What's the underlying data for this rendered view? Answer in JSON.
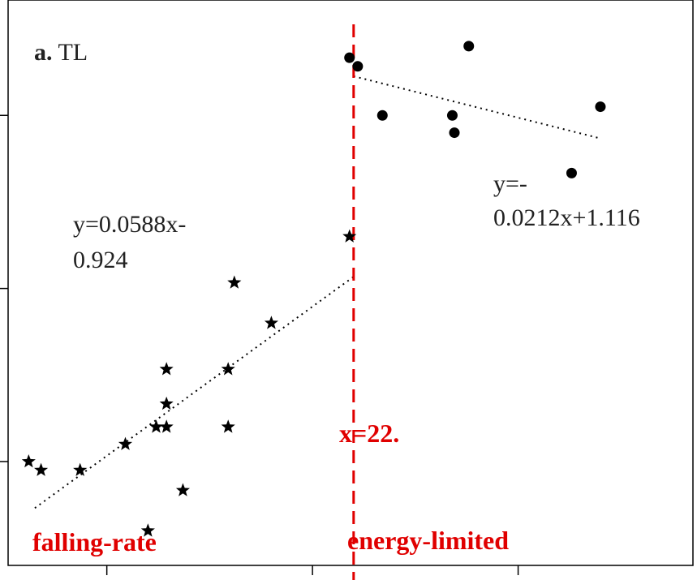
{
  "chart_data": {
    "type": "scatter",
    "panel_label_prefix": "a.",
    "panel_label_name": "TL",
    "xlabel": "",
    "ylabel": "",
    "xlim": [
      5.2,
      38.5
    ],
    "ylim": [
      0.02,
      1.0
    ],
    "x_ticks": [
      10,
      20,
      30,
      40
    ],
    "y_ticks": [
      0.2,
      0.5,
      0.8
    ],
    "grid": false,
    "legend": "none",
    "threshold": {
      "x": 22.0,
      "label": "x=22.",
      "color": "#e00000"
    },
    "region_labels": [
      {
        "text": "falling-rate",
        "side": "left"
      },
      {
        "text": "energy-limited",
        "side": "right"
      }
    ],
    "series": [
      {
        "marker": "star",
        "points": [
          [
            6.2,
            0.2
          ],
          [
            6.8,
            0.185
          ],
          [
            8.7,
            0.185
          ],
          [
            10.9,
            0.23
          ],
          [
            12.0,
            0.08
          ],
          [
            12.4,
            0.26
          ],
          [
            12.9,
            0.36
          ],
          [
            12.9,
            0.26
          ],
          [
            12.9,
            0.3
          ],
          [
            13.7,
            0.15
          ],
          [
            15.9,
            0.36
          ],
          [
            15.9,
            0.26
          ],
          [
            16.2,
            0.51
          ],
          [
            18.0,
            0.44
          ],
          [
            21.8,
            0.59
          ]
        ],
        "fit": {
          "equation_lines": [
            "y=0.0588x-",
            "0.924"
          ],
          "x_range": [
            6.5,
            22.0
          ]
        }
      },
      {
        "marker": "circle",
        "points": [
          [
            21.8,
            0.9
          ],
          [
            22.2,
            0.885
          ],
          [
            23.4,
            0.8
          ],
          [
            26.8,
            0.8
          ],
          [
            26.9,
            0.77
          ],
          [
            27.6,
            0.92
          ],
          [
            32.6,
            0.7
          ],
          [
            34.0,
            0.815
          ]
        ],
        "fit": {
          "equation_lines": [
            "y=-",
            "0.0212x+1.116"
          ],
          "x_range": [
            22.0,
            34.0
          ]
        }
      }
    ]
  }
}
